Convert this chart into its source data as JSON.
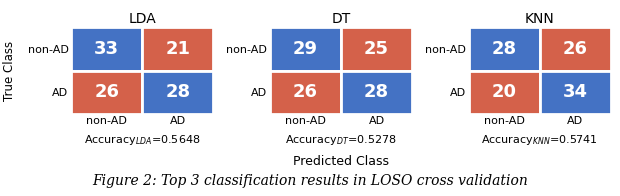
{
  "matrices": [
    {
      "title": "LDA",
      "values": [
        [
          33,
          21
        ],
        [
          26,
          28
        ]
      ],
      "accuracy_sub": "LDA",
      "accuracy_val": "=0.5648"
    },
    {
      "title": "DT",
      "values": [
        [
          29,
          25
        ],
        [
          26,
          28
        ]
      ],
      "accuracy_sub": "DT",
      "accuracy_val": "=0.5278"
    },
    {
      "title": "KNN",
      "values": [
        [
          28,
          26
        ],
        [
          20,
          34
        ]
      ],
      "accuracy_sub": "KNN",
      "accuracy_val": "=0.5741"
    }
  ],
  "blue_color": "#4472C4",
  "orange_color": "#D4614A",
  "text_color": "#FFFFFF",
  "x_labels": [
    "non-AD",
    "AD"
  ],
  "y_labels": [
    "non-AD",
    "AD"
  ],
  "x_axis_label": "Predicted Class",
  "y_axis_label": "True Class",
  "figure_caption": "Figure 2: Top 3 classification results in LOSO cross validation",
  "number_fontsize": 13,
  "label_fontsize": 8,
  "title_fontsize": 10,
  "accuracy_fontsize": 8,
  "caption_fontsize": 10
}
